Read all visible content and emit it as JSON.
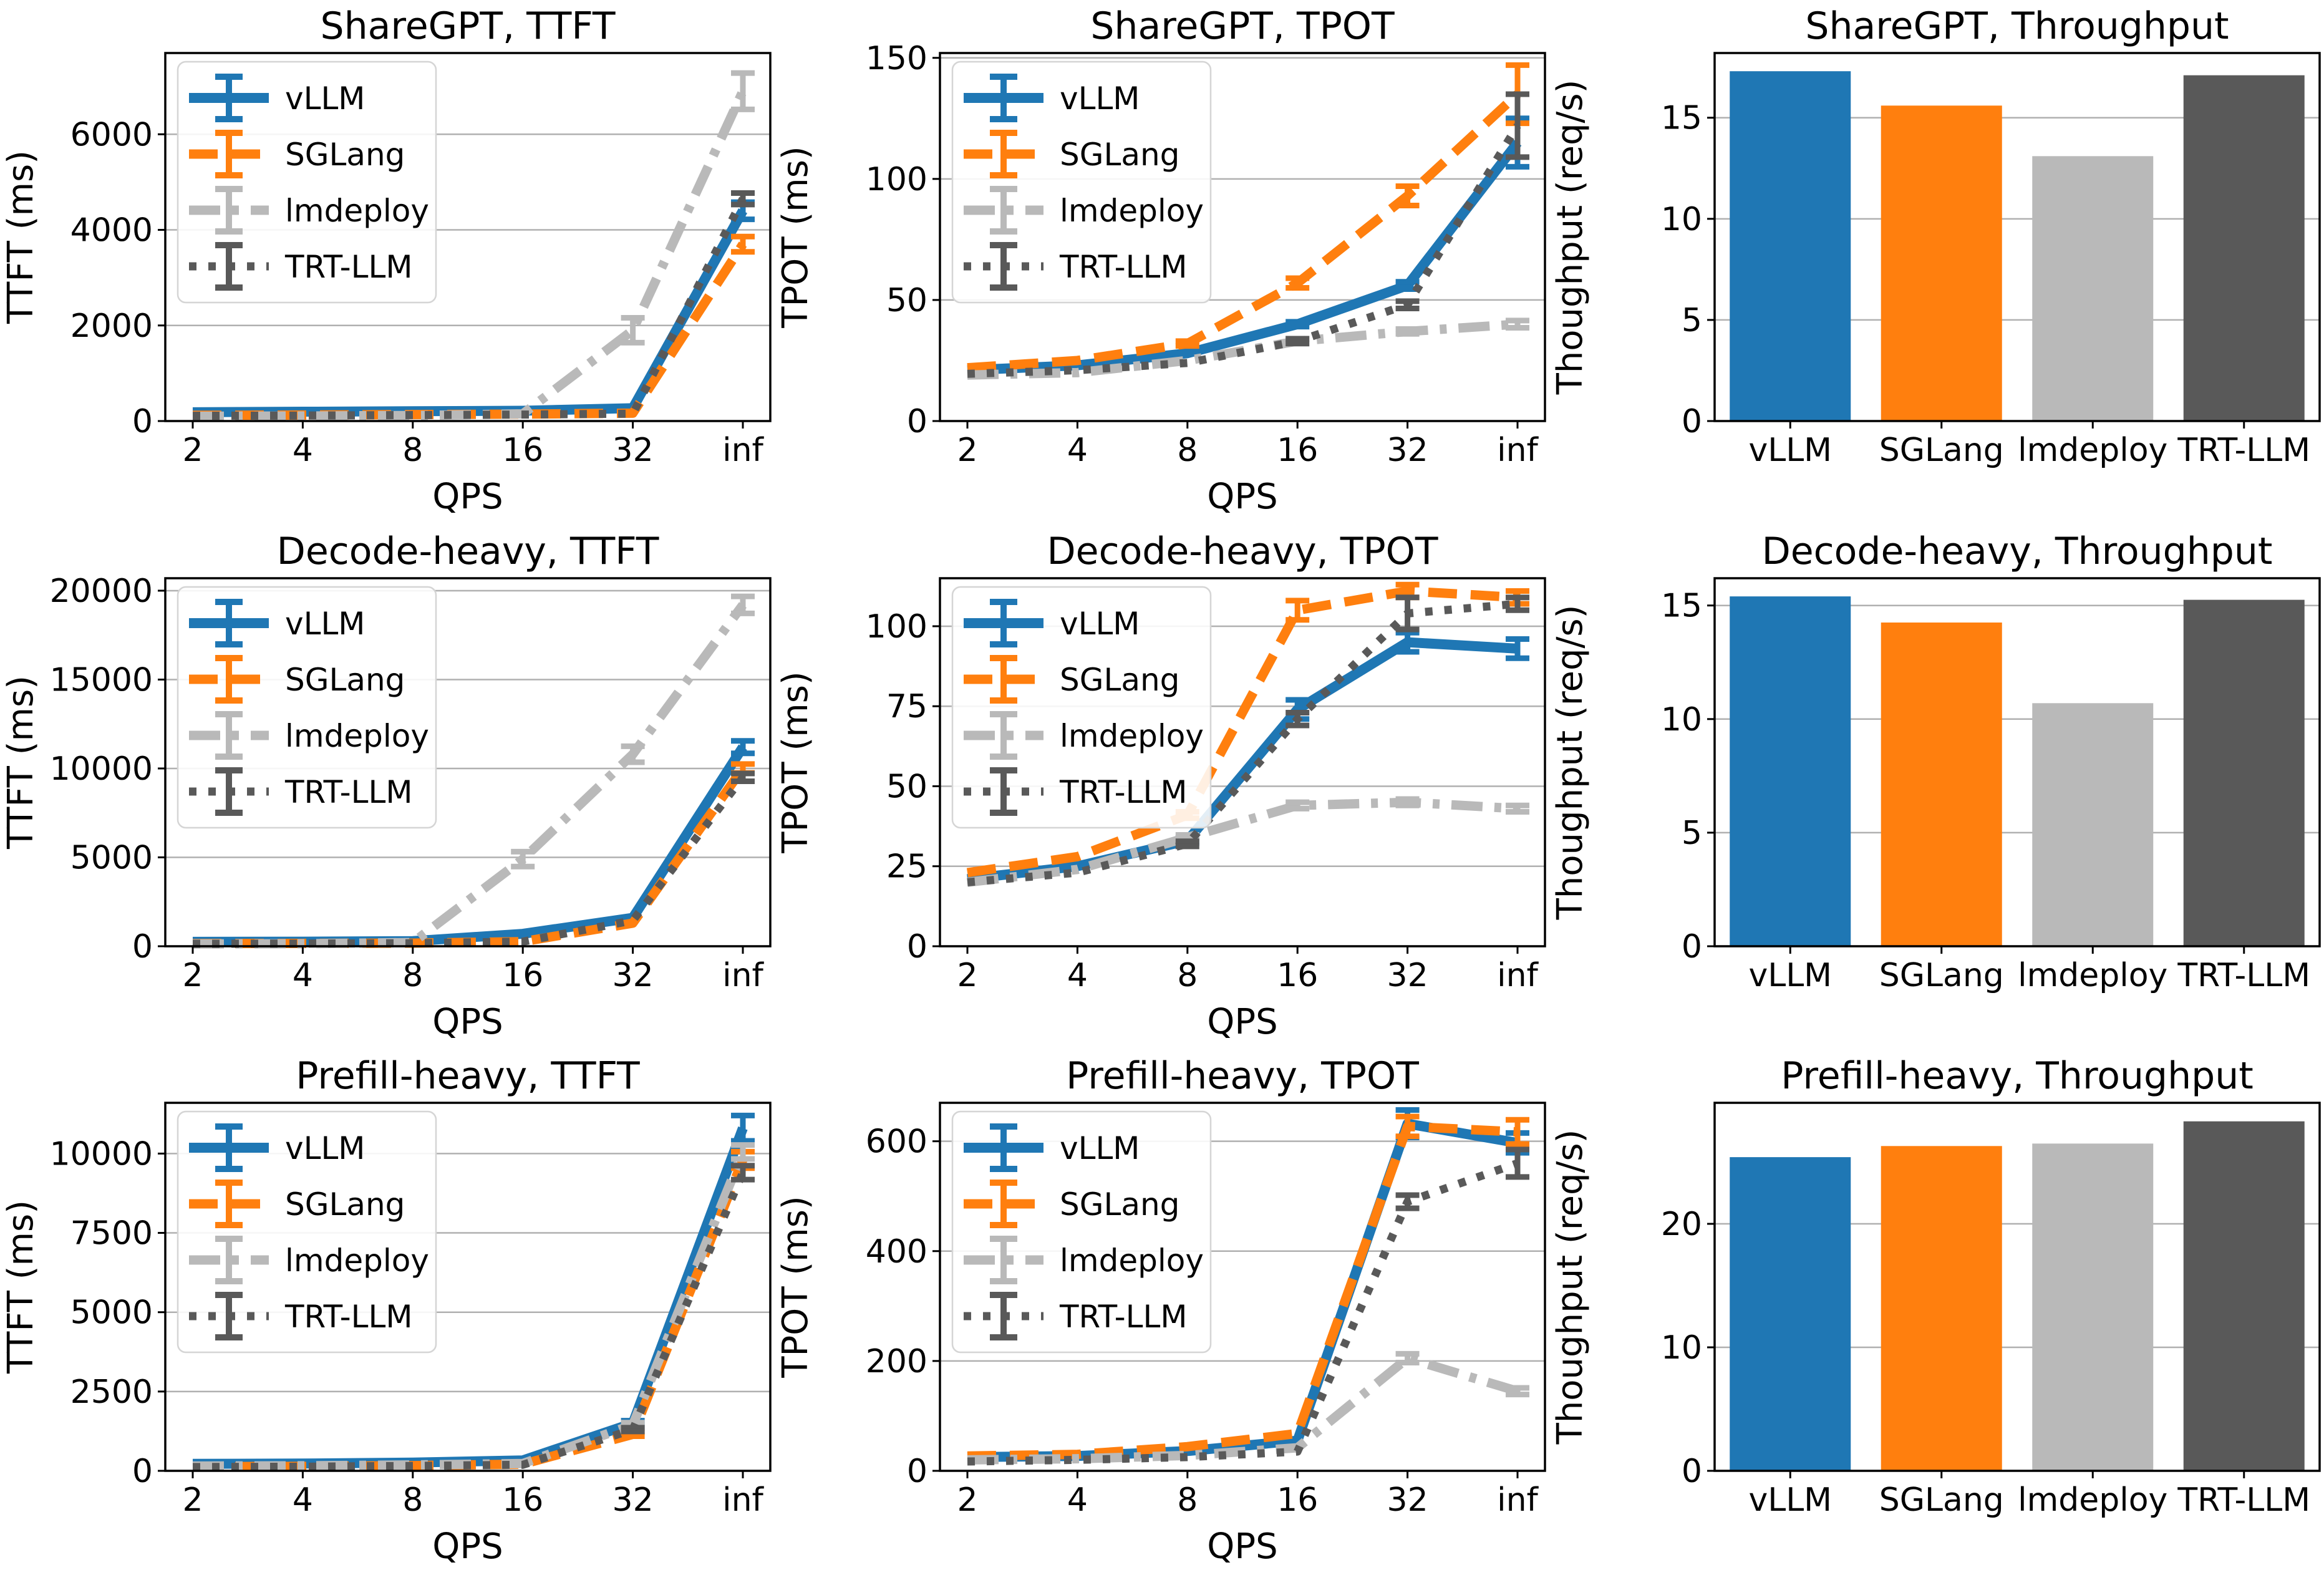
{
  "figure": {
    "background": "#ffffff",
    "frameworks": [
      "vLLM",
      "SGLang",
      "lmdeploy",
      "TRT-LLM"
    ],
    "framework_colors": {
      "vLLM": "#1f77b4",
      "SGLang": "#ff7f0e",
      "lmdeploy": "#b9b9b9",
      "TRT-LLM": "#595959"
    },
    "framework_linestyles": {
      "vLLM": "solid",
      "SGLang": "dashed",
      "lmdeploy": "dashdot",
      "TRT-LLM": "dotted"
    },
    "grid_color": "#b0b0b0",
    "axis_color": "#000000",
    "legend_border_color": "#d5d5d5"
  },
  "chart_data": [
    {
      "id": "sharegpt-ttft",
      "type": "line",
      "title": "ShareGPT, TTFT",
      "xlabel": "QPS",
      "ylabel": "TTFT (ms)",
      "x_ticklabels": [
        "2",
        "4",
        "8",
        "16",
        "32",
        "inf"
      ],
      "yticks": [
        0,
        2000,
        4000,
        6000
      ],
      "ylim": [
        0,
        7700
      ],
      "grid": true,
      "legend": true,
      "legend_loc": "upper left",
      "series": [
        {
          "name": "vLLM",
          "values": [
            185,
            195,
            205,
            215,
            270,
            4400
          ],
          "yerr": [
            0,
            0,
            0,
            0,
            0,
            180
          ]
        },
        {
          "name": "SGLang",
          "values": [
            120,
            125,
            135,
            145,
            165,
            3700
          ],
          "yerr": [
            0,
            0,
            0,
            0,
            0,
            160
          ]
        },
        {
          "name": "lmdeploy",
          "values": [
            100,
            105,
            115,
            150,
            1900,
            6900
          ],
          "yerr": [
            0,
            0,
            0,
            30,
            260,
            380
          ]
        },
        {
          "name": "TRT-LLM",
          "values": [
            110,
            115,
            125,
            135,
            155,
            4650
          ],
          "yerr": [
            0,
            0,
            0,
            0,
            0,
            120
          ]
        }
      ]
    },
    {
      "id": "sharegpt-tpot",
      "type": "line",
      "title": "ShareGPT, TPOT",
      "xlabel": "QPS",
      "ylabel": "TPOT (ms)",
      "x_ticklabels": [
        "2",
        "4",
        "8",
        "16",
        "32",
        "inf"
      ],
      "yticks": [
        0,
        50,
        100,
        150
      ],
      "ylim": [
        0,
        152
      ],
      "grid": true,
      "legend": true,
      "legend_loc": "upper left",
      "series": [
        {
          "name": "vLLM",
          "values": [
            21,
            23,
            28,
            40,
            56,
            115
          ],
          "yerr": [
            0.5,
            0.5,
            0.5,
            1,
            1.5,
            10
          ]
        },
        {
          "name": "SGLang",
          "values": [
            22,
            25,
            32,
            57,
            93,
            135
          ],
          "yerr": [
            0.5,
            0.5,
            1,
            2,
            4,
            12
          ]
        },
        {
          "name": "lmdeploy",
          "values": [
            19,
            20,
            25,
            33,
            37,
            40
          ],
          "yerr": [
            0.3,
            0.3,
            0.5,
            1,
            1,
            1.5
          ]
        },
        {
          "name": "TRT-LLM",
          "values": [
            19.5,
            21,
            24,
            33,
            48,
            122
          ],
          "yerr": [
            0.3,
            0.3,
            0.5,
            1,
            1.5,
            13
          ]
        }
      ]
    },
    {
      "id": "sharegpt-throughput",
      "type": "bar",
      "title": "ShareGPT, Throughput",
      "ylabel": "Thoughput (req/s)",
      "categories": [
        "vLLM",
        "SGLang",
        "lmdeploy",
        "TRT-LLM"
      ],
      "values": [
        17.3,
        15.6,
        13.1,
        17.1
      ],
      "yticks": [
        0,
        5,
        10,
        15
      ],
      "ylim": [
        0,
        18.2
      ],
      "grid": true
    },
    {
      "id": "decode-heavy-ttft",
      "type": "line",
      "title": "Decode-heavy, TTFT",
      "xlabel": "QPS",
      "ylabel": "TTFT (ms)",
      "x_ticklabels": [
        "2",
        "4",
        "8",
        "16",
        "32",
        "inf"
      ],
      "yticks": [
        0,
        5000,
        10000,
        15000,
        20000
      ],
      "ylim": [
        0,
        20700
      ],
      "grid": true,
      "legend": true,
      "legend_loc": "upper left",
      "series": [
        {
          "name": "vLLM",
          "values": [
            250,
            260,
            290,
            700,
            1600,
            11200
          ],
          "yerr": [
            0,
            0,
            0,
            40,
            80,
            350
          ]
        },
        {
          "name": "SGLang",
          "values": [
            150,
            160,
            175,
            260,
            1300,
            10000
          ],
          "yerr": [
            0,
            0,
            0,
            0,
            60,
            250
          ]
        },
        {
          "name": "lmdeploy",
          "values": [
            130,
            140,
            210,
            4900,
            10800,
            19200
          ],
          "yerr": [
            0,
            0,
            30,
            420,
            450,
            480
          ]
        },
        {
          "name": "TRT-LLM",
          "values": [
            140,
            150,
            170,
            260,
            1450,
            9500
          ],
          "yerr": [
            0,
            0,
            0,
            0,
            60,
            220
          ]
        }
      ]
    },
    {
      "id": "decode-heavy-tpot",
      "type": "line",
      "title": "Decode-heavy, TPOT",
      "xlabel": "QPS",
      "ylabel": "TPOT (ms)",
      "x_ticklabels": [
        "2",
        "4",
        "8",
        "16",
        "32",
        "inf"
      ],
      "yticks": [
        0,
        25,
        50,
        75,
        100
      ],
      "ylim": [
        0,
        115
      ],
      "grid": true,
      "legend": true,
      "legend_loc": "upper left",
      "series": [
        {
          "name": "vLLM",
          "values": [
            21,
            25,
            33,
            74,
            95,
            93
          ],
          "yerr": [
            0.4,
            0.5,
            0.8,
            3,
            3,
            3
          ]
        },
        {
          "name": "SGLang",
          "values": [
            23,
            28,
            41,
            105,
            111,
            109
          ],
          "yerr": [
            0.4,
            0.5,
            1,
            3,
            2,
            2
          ]
        },
        {
          "name": "lmdeploy",
          "values": [
            20,
            24,
            34,
            44,
            45,
            43
          ],
          "yerr": [
            0.3,
            0.4,
            0.8,
            1,
            1,
            1
          ]
        },
        {
          "name": "TRT-LLM",
          "values": [
            20,
            23,
            32,
            71,
            104,
            107
          ],
          "yerr": [
            0.3,
            0.4,
            0.8,
            2,
            5,
            2
          ]
        }
      ]
    },
    {
      "id": "decode-heavy-throughput",
      "type": "bar",
      "title": "Decode-heavy, Throughput",
      "ylabel": "Thoughput (req/s)",
      "categories": [
        "vLLM",
        "SGLang",
        "lmdeploy",
        "TRT-LLM"
      ],
      "values": [
        15.4,
        14.25,
        10.7,
        15.25
      ],
      "yticks": [
        0,
        5,
        10,
        15
      ],
      "ylim": [
        0,
        16.2
      ],
      "grid": true
    },
    {
      "id": "prefill-heavy-ttft",
      "type": "line",
      "title": "Prefill-heavy, TTFT",
      "xlabel": "QPS",
      "ylabel": "TTFT (ms)",
      "x_ticklabels": [
        "2",
        "4",
        "8",
        "16",
        "32",
        "inf"
      ],
      "yticks": [
        0,
        2500,
        5000,
        7500,
        10000
      ],
      "ylim": [
        0,
        11600
      ],
      "grid": true,
      "legend": true,
      "legend_loc": "upper left",
      "series": [
        {
          "name": "vLLM",
          "values": [
            220,
            230,
            260,
            330,
            1500,
            10800
          ],
          "yerr": [
            0,
            0,
            0,
            0,
            80,
            400
          ]
        },
        {
          "name": "SGLang",
          "values": [
            130,
            140,
            165,
            210,
            1150,
            9800
          ],
          "yerr": [
            0,
            0,
            0,
            0,
            60,
            260
          ]
        },
        {
          "name": "lmdeploy",
          "values": [
            150,
            160,
            185,
            230,
            1450,
            10050
          ],
          "yerr": [
            0,
            0,
            0,
            0,
            70,
            220
          ]
        },
        {
          "name": "TRT-LLM",
          "values": [
            120,
            130,
            155,
            190,
            1300,
            9400
          ],
          "yerr": [
            0,
            0,
            0,
            0,
            60,
            220
          ]
        }
      ]
    },
    {
      "id": "prefill-heavy-tpot",
      "type": "line",
      "title": "Prefill-heavy, TPOT",
      "xlabel": "QPS",
      "ylabel": "TPOT (ms)",
      "x_ticklabels": [
        "2",
        "4",
        "8",
        "16",
        "32",
        "inf"
      ],
      "yticks": [
        0,
        200,
        400,
        600
      ],
      "ylim": [
        0,
        670
      ],
      "grid": true,
      "legend": true,
      "legend_loc": "upper left",
      "series": [
        {
          "name": "vLLM",
          "values": [
            25,
            27,
            36,
            55,
            632,
            597
          ],
          "yerr": [
            0.5,
            0.5,
            1,
            2,
            25,
            18
          ]
        },
        {
          "name": "SGLang",
          "values": [
            27,
            30,
            44,
            68,
            627,
            617
          ],
          "yerr": [
            0.5,
            0.5,
            1,
            2,
            18,
            22
          ]
        },
        {
          "name": "lmdeploy",
          "values": [
            20,
            22,
            28,
            42,
            205,
            145
          ],
          "yerr": [
            0.4,
            0.4,
            0.8,
            1.5,
            8,
            6
          ]
        },
        {
          "name": "TRT-LLM",
          "values": [
            17,
            20,
            25,
            35,
            490,
            560
          ],
          "yerr": [
            0.4,
            0.4,
            0.8,
            1.5,
            12,
            25
          ]
        }
      ]
    },
    {
      "id": "prefill-heavy-throughput",
      "type": "bar",
      "title": "Prefill-heavy, Throughput",
      "ylabel": "Thoughput (req/s)",
      "categories": [
        "vLLM",
        "SGLang",
        "lmdeploy",
        "TRT-LLM"
      ],
      "values": [
        25.4,
        26.3,
        26.5,
        28.3
      ],
      "yticks": [
        0,
        10,
        20
      ],
      "ylim": [
        0,
        29.8
      ],
      "grid": true
    }
  ]
}
